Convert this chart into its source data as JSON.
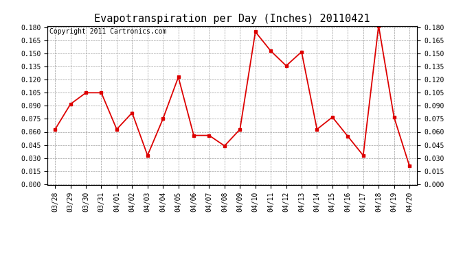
{
  "title": "Evapotranspiration per Day (Inches) 20110421",
  "copyright_text": "Copyright 2011 Cartronics.com",
  "x_labels": [
    "03/28",
    "03/29",
    "03/30",
    "03/31",
    "04/01",
    "04/02",
    "04/03",
    "04/04",
    "04/05",
    "04/06",
    "04/07",
    "04/08",
    "04/09",
    "04/10",
    "04/11",
    "04/12",
    "04/13",
    "04/14",
    "04/15",
    "04/16",
    "04/17",
    "04/18",
    "04/19",
    "04/20"
  ],
  "y_values": [
    0.063,
    0.092,
    0.105,
    0.105,
    0.063,
    0.082,
    0.033,
    0.075,
    0.123,
    0.056,
    0.056,
    0.044,
    0.063,
    0.175,
    0.153,
    0.136,
    0.152,
    0.063,
    0.077,
    0.055,
    0.033,
    0.182,
    0.077,
    0.021
  ],
  "line_color": "#dd0000",
  "marker": "s",
  "marker_size": 2.5,
  "line_width": 1.3,
  "background_color": "#ffffff",
  "plot_bg_color": "#ffffff",
  "grid_color": "#999999",
  "grid_style": "--",
  "ylim": [
    0.0,
    0.18
  ],
  "ytick_step": 0.015,
  "title_fontsize": 11,
  "copyright_fontsize": 7,
  "tick_fontsize": 7
}
